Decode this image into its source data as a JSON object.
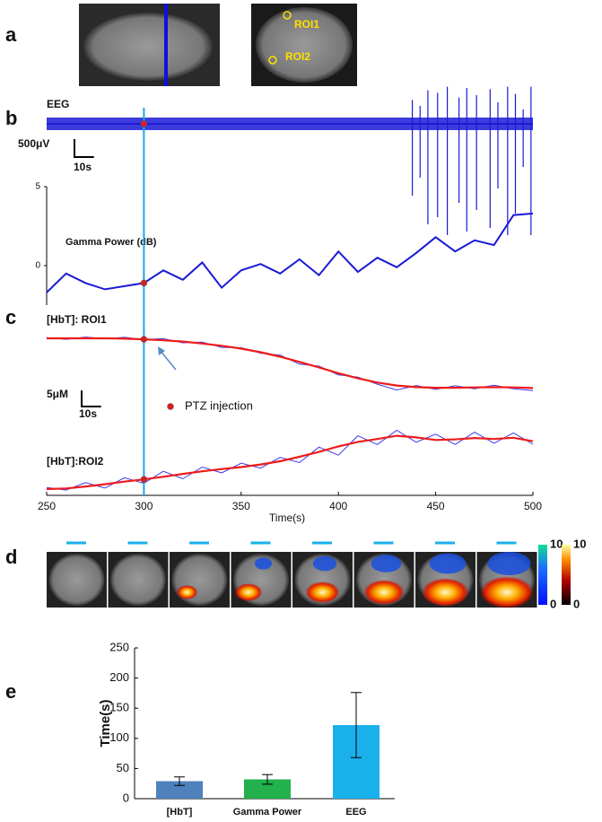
{
  "panels": [
    "a",
    "b",
    "c",
    "d",
    "e"
  ],
  "roi_labels": [
    "ROI1",
    "ROI2"
  ],
  "chart_data": [
    {
      "type": "eeg",
      "label": "EEG",
      "scale_bar": {
        "y": {
          "value": 500,
          "label": "500μV"
        },
        "x": {
          "value": 10,
          "label": "10s"
        }
      },
      "color": "#1a1ad6",
      "spikes": {
        "x": [
          438,
          442,
          446,
          451,
          456,
          462,
          466,
          471,
          478,
          482,
          487,
          491,
          495,
          499
        ],
        "values": [
          -2000,
          -1500,
          -2800,
          -2600,
          -3100,
          -2200,
          -3000,
          -2400,
          -2900,
          -1800,
          -3100,
          -2500,
          -1200,
          -3100
        ]
      }
    },
    {
      "type": "line",
      "title": "Gamma Power (dB)",
      "x": [
        250,
        260,
        270,
        280,
        290,
        300,
        310,
        320,
        330,
        340,
        350,
        360,
        370,
        380,
        390,
        400,
        410,
        420,
        430,
        440,
        450,
        460,
        470,
        480,
        490,
        500
      ],
      "series": [
        {
          "color": "#1a1ad6",
          "values": [
            -1.7,
            -0.5,
            -1.1,
            -1.5,
            -1.3,
            -1.1,
            -0.3,
            -0.9,
            0.2,
            -1.4,
            -0.3,
            0.1,
            -0.5,
            0.4,
            -0.6,
            0.9,
            -0.4,
            0.5,
            -0.1,
            0.8,
            1.8,
            0.9,
            1.6,
            1.3,
            3.2,
            3.3
          ]
        }
      ],
      "ylim": [
        -2.5,
        5
      ],
      "yticks": [
        0,
        5
      ]
    },
    {
      "type": "hbt",
      "xlim": [
        250,
        500
      ],
      "xticks": [
        250,
        300,
        350,
        400,
        450,
        500
      ],
      "xlabel": "Time(s)",
      "annotation": "PTZ injection",
      "injection_x": 300,
      "scale_bar": {
        "y": {
          "value": 5,
          "label": "5μM"
        },
        "x": {
          "value": 10,
          "label": "10s"
        }
      },
      "x": [
        250,
        260,
        270,
        280,
        290,
        300,
        310,
        320,
        330,
        340,
        350,
        360,
        370,
        380,
        390,
        400,
        410,
        420,
        430,
        440,
        450,
        460,
        470,
        480,
        490,
        500
      ],
      "plots": [
        {
          "label": "[HbT]: ROI1",
          "series": [
            {
              "color": "#3a3aee",
              "values": [
                0.2,
                -0.3,
                0.4,
                -0.1,
                0.3,
                -0.4,
                -0.1,
                -1.4,
                -1.2,
                -2.8,
                -2.9,
                -4.6,
                -5.2,
                -8.0,
                -8.6,
                -11.3,
                -12.0,
                -14.2,
                -16.0,
                -14.6,
                -15.8,
                -14.7,
                -15.6,
                -14.5,
                -15.6,
                -16.2
              ]
            },
            {
              "color": "#ee1c1c",
              "values": [
                0,
                0,
                0,
                0,
                -0.1,
                -0.3,
                -0.6,
                -1.0,
                -1.6,
                -2.3,
                -3.2,
                -4.3,
                -5.7,
                -7.3,
                -9.0,
                -10.8,
                -12.4,
                -13.7,
                -14.6,
                -15.1,
                -15.3,
                -15.3,
                -15.2,
                -15.1,
                -15.2,
                -15.4
              ]
            }
          ]
        },
        {
          "label": "[HbT]:ROI2",
          "series": [
            {
              "color": "#3a3aee",
              "values": [
                0.5,
                -0.3,
                2.0,
                0.3,
                3.5,
                1.8,
                5.5,
                3.2,
                6.8,
                5.0,
                8.0,
                6.5,
                9.8,
                8.2,
                13.0,
                10.5,
                16.5,
                13.8,
                18.2,
                14.5,
                17.0,
                13.8,
                17.6,
                14.2,
                17.4,
                13.9
              ]
            },
            {
              "color": "#ee1c1c",
              "values": [
                0,
                0.2,
                0.8,
                1.5,
                2.3,
                3.0,
                3.8,
                4.7,
                5.5,
                6.2,
                6.8,
                7.6,
                8.6,
                10.0,
                11.5,
                13.2,
                14.6,
                15.5,
                16.5,
                16.0,
                15.2,
                15.4,
                15.8,
                15.5,
                15.9,
                14.8
              ]
            }
          ]
        }
      ]
    },
    {
      "type": "colorbars",
      "colorbars": [
        {
          "ticks": [
            0,
            10
          ]
        },
        {
          "ticks": [
            0,
            10
          ]
        }
      ]
    },
    {
      "type": "bar",
      "categories": [
        "[HbT]",
        "Gamma Power",
        "EEG"
      ],
      "values": [
        29,
        32,
        122
      ],
      "errors": [
        7,
        8,
        54
      ],
      "colors": [
        "#4f81bd",
        "#22b14c",
        "#1ab0ec"
      ],
      "ylabel": "Time(s)",
      "ylim": [
        0,
        250
      ],
      "yticks": [
        0,
        50,
        100,
        150,
        200,
        250
      ]
    }
  ]
}
